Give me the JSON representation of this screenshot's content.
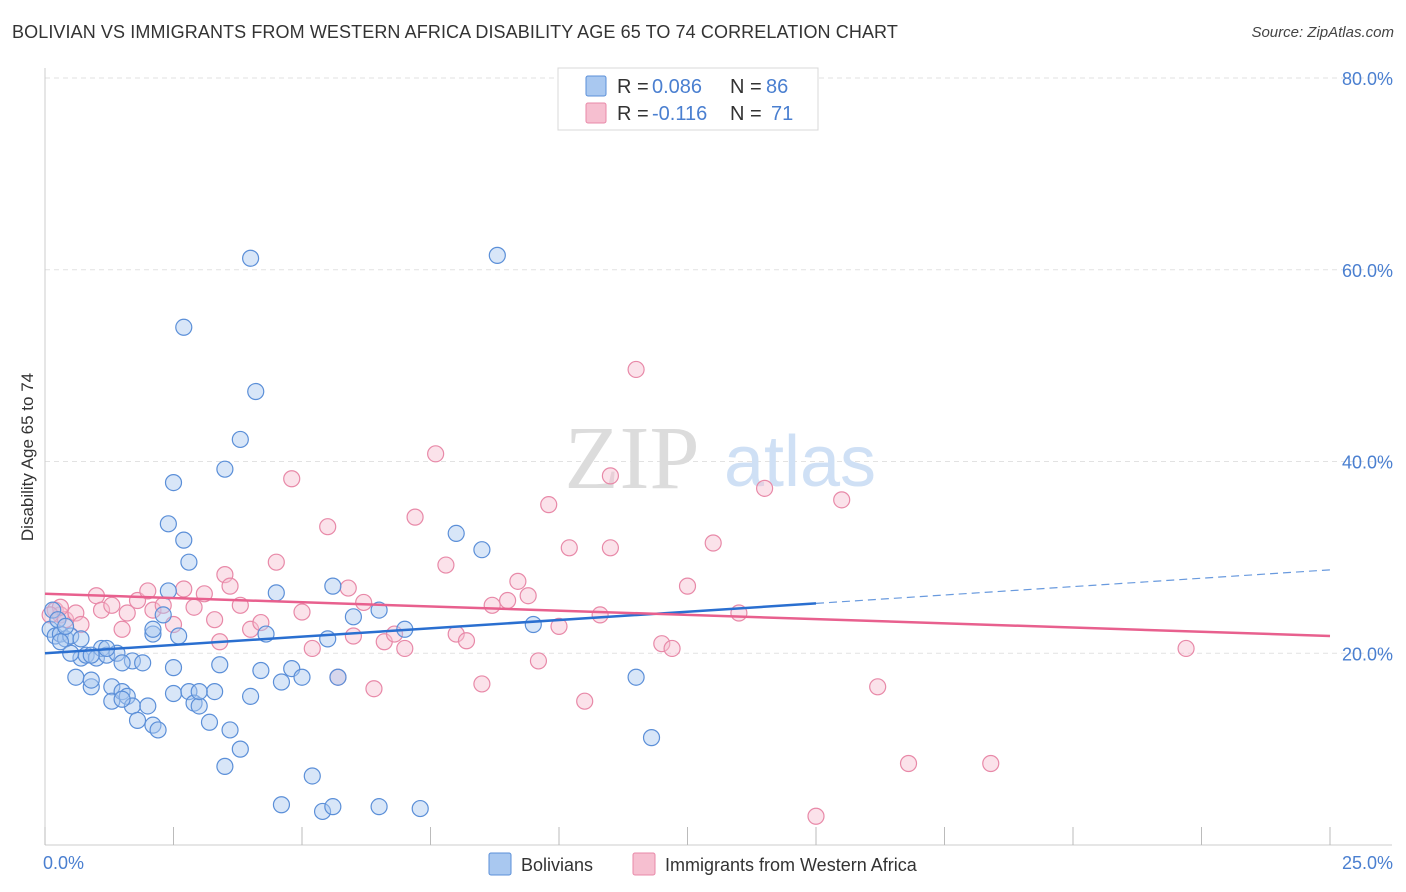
{
  "title": "BOLIVIAN VS IMMIGRANTS FROM WESTERN AFRICA DISABILITY AGE 65 TO 74 CORRELATION CHART",
  "source": "Source: ZipAtlas.com",
  "watermark": {
    "zip": "ZIP",
    "atlas": "atlas"
  },
  "colors": {
    "bolivians_fill": "#a9c8f0",
    "bolivians_stroke": "#5b8fd8",
    "bolivians_line": "#2a6fd0",
    "immigrants_fill": "#f6bfd0",
    "immigrants_stroke": "#e889a8",
    "immigrants_line": "#e8608e",
    "tick_text": "#4a7fd0"
  },
  "legend_top": [
    {
      "r_label": "R =",
      "r_value": "0.086",
      "n_label": "N =",
      "n_value": "86"
    },
    {
      "r_label": "R =",
      "r_value": "-0.116",
      "n_label": "N =",
      "n_value": "71"
    }
  ],
  "chart_data": {
    "type": "scatter",
    "title": "BOLIVIAN VS IMMIGRANTS FROM WESTERN AFRICA DISABILITY AGE 65 TO 74 CORRELATION CHART",
    "xlabel": "",
    "ylabel": "Disability Age 65 to 74",
    "xlim": [
      0,
      25
    ],
    "ylim": [
      0,
      80
    ],
    "x_tick_labels": [
      "0.0%",
      "25.0%"
    ],
    "y_ticks": [
      20,
      40,
      60,
      80
    ],
    "y_tick_labels": [
      "20.0%",
      "40.0%",
      "60.0%",
      "80.0%"
    ],
    "grid": true,
    "legend_position": "top-center",
    "series": [
      {
        "name": "Bolivians",
        "r": 0.086,
        "n": 86,
        "trend": {
          "x_start": 0,
          "y_start": 20.0,
          "x_end": 15,
          "y_end": 25.2,
          "dashed_to_x": 25,
          "dashed_to_y": 28.7
        },
        "points": [
          [
            0.1,
            22.5
          ],
          [
            0.2,
            21.8
          ],
          [
            0.3,
            22.0
          ],
          [
            0.4,
            21.5
          ],
          [
            0.5,
            21.8
          ],
          [
            0.6,
            17.5
          ],
          [
            0.7,
            19.5
          ],
          [
            0.8,
            19.8
          ],
          [
            0.9,
            16.5
          ],
          [
            0.9,
            17.2
          ],
          [
            1.0,
            19.5
          ],
          [
            1.1,
            20.5
          ],
          [
            1.2,
            19.8
          ],
          [
            1.3,
            16.5
          ],
          [
            1.3,
            15.0
          ],
          [
            1.4,
            20.0
          ],
          [
            1.5,
            16.0
          ],
          [
            1.6,
            15.5
          ],
          [
            1.7,
            14.5
          ],
          [
            1.7,
            19.2
          ],
          [
            1.8,
            13.0
          ],
          [
            1.9,
            19.0
          ],
          [
            2.0,
            14.5
          ],
          [
            2.1,
            22.0
          ],
          [
            2.1,
            12.5
          ],
          [
            2.2,
            12.0
          ],
          [
            2.3,
            24.0
          ],
          [
            2.4,
            26.5
          ],
          [
            2.5,
            18.5
          ],
          [
            2.5,
            15.8
          ],
          [
            2.6,
            21.8
          ],
          [
            2.7,
            31.8
          ],
          [
            2.8,
            16.0
          ],
          [
            2.8,
            29.5
          ],
          [
            2.9,
            14.8
          ],
          [
            3.0,
            14.5
          ],
          [
            3.2,
            12.8
          ],
          [
            3.3,
            16.0
          ],
          [
            3.4,
            18.8
          ],
          [
            3.5,
            8.2
          ],
          [
            3.6,
            12.0
          ],
          [
            3.8,
            10.0
          ],
          [
            4.0,
            15.5
          ],
          [
            4.2,
            18.2
          ],
          [
            4.3,
            22.0
          ],
          [
            4.5,
            26.3
          ],
          [
            4.6,
            17.0
          ],
          [
            4.8,
            18.4
          ],
          [
            5.0,
            17.5
          ],
          [
            5.2,
            7.2
          ],
          [
            5.5,
            21.5
          ],
          [
            5.6,
            27.0
          ],
          [
            5.7,
            17.5
          ],
          [
            6.0,
            23.8
          ],
          [
            6.5,
            4.0
          ],
          [
            7.0,
            22.5
          ],
          [
            8.0,
            32.5
          ],
          [
            8.5,
            30.8
          ],
          [
            9.5,
            23.0
          ],
          [
            11.5,
            17.5
          ],
          [
            11.8,
            11.2
          ],
          [
            3.5,
            39.2
          ],
          [
            2.5,
            37.8
          ],
          [
            3.8,
            42.3
          ],
          [
            2.4,
            33.5
          ],
          [
            4.1,
            47.3
          ],
          [
            2.7,
            54.0
          ],
          [
            4.0,
            61.2
          ],
          [
            8.8,
            61.5
          ],
          [
            5.4,
            3.5
          ],
          [
            5.6,
            4.0
          ],
          [
            4.6,
            4.2
          ],
          [
            7.3,
            3.8
          ],
          [
            3.0,
            16.0
          ],
          [
            1.5,
            15.2
          ],
          [
            0.3,
            21.2
          ],
          [
            0.5,
            20.0
          ],
          [
            1.2,
            20.5
          ],
          [
            2.1,
            22.5
          ],
          [
            6.5,
            24.5
          ],
          [
            0.15,
            24.5
          ],
          [
            0.25,
            23.5
          ],
          [
            0.4,
            22.8
          ],
          [
            0.7,
            21.5
          ],
          [
            0.9,
            19.8
          ],
          [
            1.5,
            19.0
          ]
        ]
      },
      {
        "name": "Immigrants from Western Africa",
        "r": -0.116,
        "n": 71,
        "trend": {
          "x_start": 0,
          "y_start": 26.2,
          "x_end": 25,
          "y_end": 21.8
        },
        "points": [
          [
            0.2,
            24.5
          ],
          [
            0.3,
            24.0
          ],
          [
            0.4,
            23.5
          ],
          [
            0.6,
            24.2
          ],
          [
            0.7,
            23.0
          ],
          [
            1.0,
            26.0
          ],
          [
            1.1,
            24.5
          ],
          [
            1.3,
            25.0
          ],
          [
            1.5,
            22.5
          ],
          [
            1.6,
            24.2
          ],
          [
            1.8,
            25.5
          ],
          [
            2.0,
            26.5
          ],
          [
            2.1,
            24.5
          ],
          [
            2.3,
            25.0
          ],
          [
            2.5,
            23.0
          ],
          [
            2.7,
            26.7
          ],
          [
            2.9,
            24.8
          ],
          [
            3.1,
            26.2
          ],
          [
            3.3,
            23.5
          ],
          [
            3.4,
            21.2
          ],
          [
            3.5,
            28.2
          ],
          [
            3.6,
            27.0
          ],
          [
            3.8,
            25.0
          ],
          [
            4.0,
            22.5
          ],
          [
            4.2,
            23.2
          ],
          [
            4.5,
            29.5
          ],
          [
            4.8,
            38.2
          ],
          [
            5.0,
            24.3
          ],
          [
            5.2,
            20.5
          ],
          [
            5.5,
            33.2
          ],
          [
            5.7,
            17.5
          ],
          [
            5.9,
            26.8
          ],
          [
            6.0,
            21.8
          ],
          [
            6.2,
            25.3
          ],
          [
            6.4,
            16.3
          ],
          [
            6.6,
            21.2
          ],
          [
            6.8,
            22.0
          ],
          [
            7.0,
            20.5
          ],
          [
            7.2,
            34.2
          ],
          [
            7.6,
            40.8
          ],
          [
            7.8,
            29.2
          ],
          [
            8.0,
            22.0
          ],
          [
            8.2,
            21.3
          ],
          [
            8.5,
            16.8
          ],
          [
            8.7,
            25.0
          ],
          [
            9.0,
            25.5
          ],
          [
            9.2,
            27.5
          ],
          [
            9.4,
            26.0
          ],
          [
            9.6,
            19.2
          ],
          [
            9.8,
            35.5
          ],
          [
            10.0,
            22.8
          ],
          [
            10.2,
            31.0
          ],
          [
            10.5,
            15.0
          ],
          [
            10.8,
            24.0
          ],
          [
            11.0,
            38.5
          ],
          [
            11.5,
            49.6
          ],
          [
            12.0,
            21.0
          ],
          [
            12.2,
            20.5
          ],
          [
            12.5,
            27.0
          ],
          [
            13.0,
            31.5
          ],
          [
            13.5,
            24.2
          ],
          [
            14.0,
            37.2
          ],
          [
            15.5,
            36.0
          ],
          [
            16.2,
            16.5
          ],
          [
            16.8,
            8.5
          ],
          [
            18.4,
            8.5
          ],
          [
            22.2,
            20.5
          ],
          [
            15.0,
            3.0
          ],
          [
            11.0,
            31.0
          ],
          [
            0.3,
            24.8
          ],
          [
            0.1,
            24.0
          ]
        ]
      }
    ]
  },
  "legend_bottom": [
    "Bolivians",
    "Immigrants from Western Africa"
  ]
}
